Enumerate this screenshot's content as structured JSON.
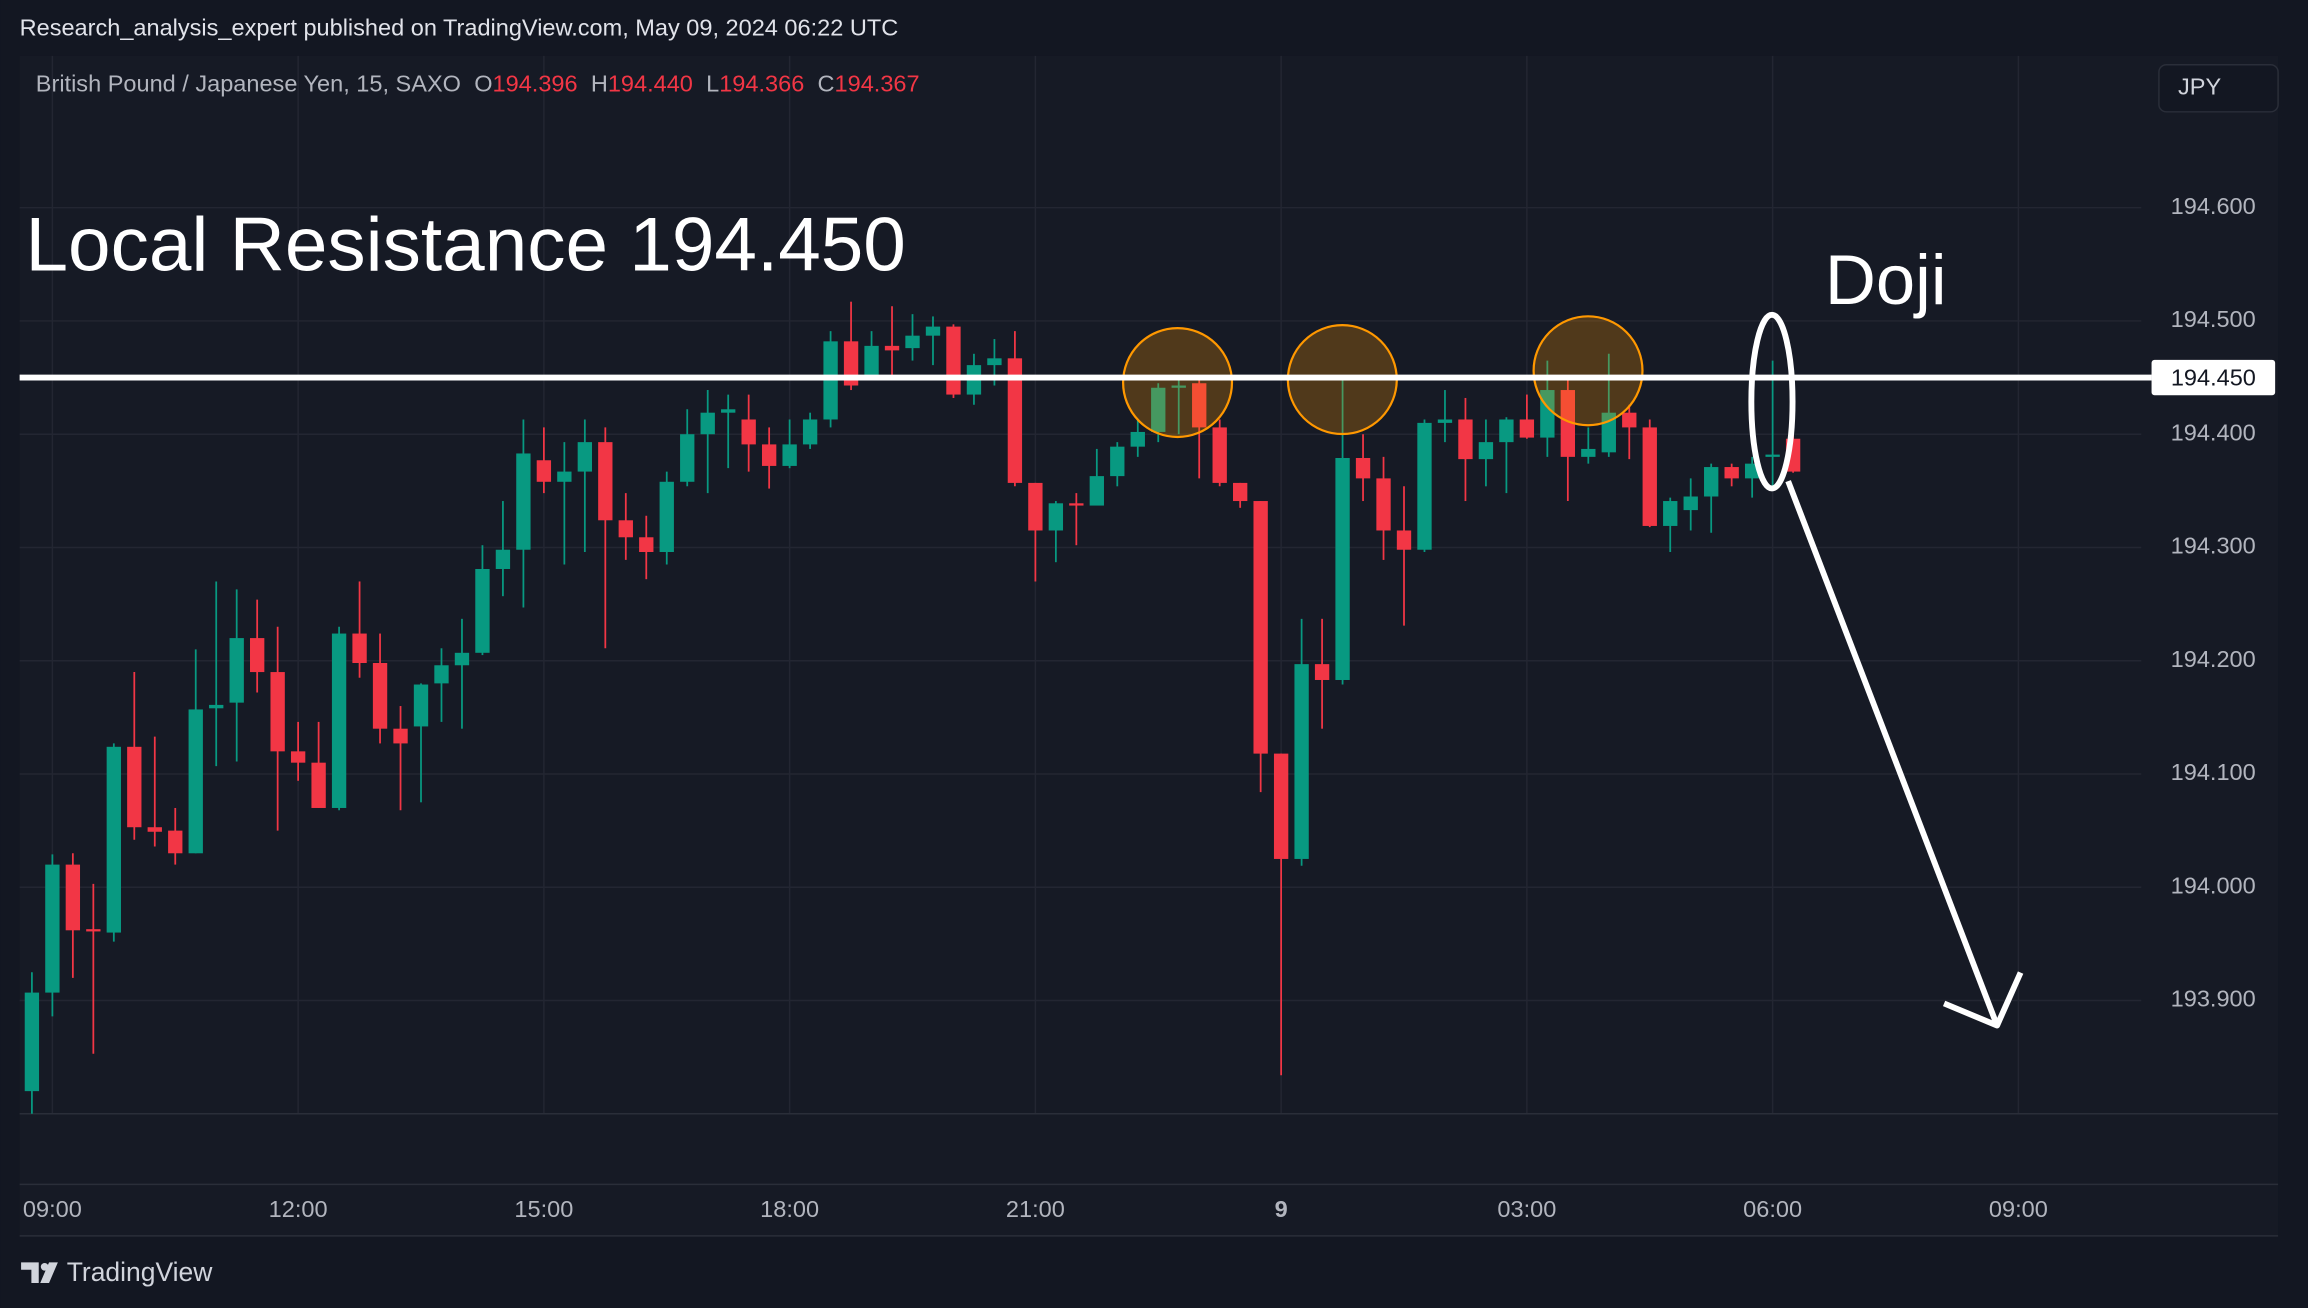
{
  "header": {
    "published": "Research_analysis_expert published on TradingView.com, May 09, 2024 06:22 UTC"
  },
  "chart_data": {
    "type": "candlestick",
    "symbol": "British Pound / Japanese Yen, 15, SAXO",
    "ohlc_letters": [
      "O",
      "H",
      "L",
      "C"
    ],
    "ohlc_values": [
      "194.396",
      "194.440",
      "194.366",
      "194.367"
    ],
    "currency": "JPY",
    "annotations": {
      "resistance_text": "Local Resistance 194.450",
      "doji_text": "Doji"
    },
    "resistance": {
      "value": 194.45,
      "label": "194.450"
    },
    "brand": "TradingView",
    "up_color": "#089981",
    "down_color": "#f23645",
    "xlim": [
      8.6,
      34.5
    ],
    "xticks": [
      {
        "value": 9,
        "label": "09:00"
      },
      {
        "value": 12,
        "label": "12:00"
      },
      {
        "value": 15,
        "label": "15:00"
      },
      {
        "value": 18,
        "label": "18:00"
      },
      {
        "value": 21,
        "label": "21:00"
      },
      {
        "value": 24,
        "label": "9"
      },
      {
        "value": 27,
        "label": "03:00"
      },
      {
        "value": 30,
        "label": "06:00"
      },
      {
        "value": 33,
        "label": "09:00"
      }
    ],
    "ylim": [
      193.8,
      194.734
    ],
    "yticks": [
      {
        "value": 193.9,
        "label": "193.900"
      },
      {
        "value": 194,
        "label": "194.000"
      },
      {
        "value": 194.1,
        "label": "194.100"
      },
      {
        "value": 194.2,
        "label": "194.200"
      },
      {
        "value": 194.3,
        "label": "194.300"
      },
      {
        "value": 194.4,
        "label": "194.400"
      },
      {
        "value": 194.5,
        "label": "194.500"
      },
      {
        "value": 194.6,
        "label": "194.600"
      }
    ],
    "grid": true,
    "x": [
      8.75,
      9,
      9.25,
      9.5,
      9.75,
      10,
      10.25,
      10.5,
      10.75,
      11,
      11.25,
      11.5,
      11.75,
      12,
      12.25,
      12.5,
      12.75,
      13,
      13.25,
      13.5,
      13.75,
      14,
      14.25,
      14.5,
      14.75,
      15,
      15.25,
      15.5,
      15.75,
      16,
      16.25,
      16.5,
      16.75,
      17,
      17.25,
      17.5,
      17.75,
      18,
      18.25,
      18.5,
      18.75,
      19,
      19.25,
      19.5,
      19.75,
      20,
      20.25,
      20.5,
      20.75,
      21,
      21.25,
      21.5,
      21.75,
      22,
      22.25,
      22.5,
      22.75,
      23,
      23.25,
      23.5,
      23.75,
      24,
      24.25,
      24.5,
      24.75,
      25,
      25.25,
      25.5,
      25.75,
      26,
      26.25,
      26.5,
      26.75,
      27,
      27.25,
      27.5,
      27.75,
      28,
      28.25,
      28.5,
      28.75,
      29,
      29.25,
      29.5,
      29.75,
      30,
      30.25
    ],
    "open": [
      193.82,
      193.907,
      194.02,
      193.963,
      193.96,
      194.124,
      194.053,
      194.05,
      194.03,
      194.158,
      194.163,
      194.22,
      194.19,
      194.12,
      194.11,
      194.07,
      194.224,
      194.198,
      194.14,
      194.142,
      194.18,
      194.196,
      194.207,
      194.281,
      194.298,
      194.377,
      194.358,
      194.367,
      194.393,
      194.324,
      194.309,
      194.296,
      194.358,
      194.4,
      194.419,
      194.413,
      194.391,
      194.372,
      194.391,
      194.413,
      194.482,
      194.452,
      194.478,
      194.476,
      194.487,
      194.495,
      194.435,
      194.461,
      194.467,
      194.357,
      194.315,
      194.339,
      194.337,
      194.363,
      194.389,
      194.402,
      194.441,
      194.445,
      194.406,
      194.357,
      194.341,
      194.118,
      194.025,
      194.197,
      194.183,
      194.379,
      194.361,
      194.315,
      194.298,
      194.41,
      194.413,
      194.378,
      194.393,
      194.413,
      194.397,
      194.439,
      194.38,
      194.384,
      194.419,
      194.406,
      194.319,
      194.333,
      194.345,
      194.371,
      194.361,
      194.38,
      194.396
    ],
    "high": [
      193.925,
      194.029,
      194.03,
      194.003,
      194.127,
      194.19,
      194.133,
      194.07,
      194.21,
      194.27,
      194.263,
      194.254,
      194.23,
      194.146,
      194.146,
      194.23,
      194.27,
      194.224,
      194.16,
      194.18,
      194.211,
      194.237,
      194.302,
      194.341,
      194.413,
      194.406,
      194.393,
      194.413,
      194.406,
      194.348,
      194.328,
      194.367,
      194.422,
      194.439,
      194.435,
      194.435,
      194.406,
      194.413,
      194.419,
      194.491,
      194.517,
      194.491,
      194.513,
      194.506,
      194.504,
      194.497,
      194.471,
      194.484,
      194.491,
      194.357,
      194.341,
      194.348,
      194.387,
      194.393,
      194.413,
      194.445,
      194.452,
      194.452,
      194.413,
      194.357,
      194.341,
      194.118,
      194.237,
      194.237,
      194.448,
      194.4,
      194.38,
      194.354,
      194.413,
      194.439,
      194.432,
      194.413,
      194.415,
      194.435,
      194.465,
      194.448,
      194.406,
      194.471,
      194.426,
      194.413,
      194.344,
      194.361,
      194.374,
      194.374,
      194.38,
      194.465,
      194.44
    ],
    "low": [
      193.8,
      193.886,
      193.92,
      193.853,
      193.952,
      194.042,
      194.036,
      194.02,
      194.03,
      194.107,
      194.111,
      194.172,
      194.05,
      194.094,
      194.07,
      194.068,
      194.185,
      194.127,
      194.068,
      194.075,
      194.146,
      194.14,
      194.205,
      194.257,
      194.247,
      194.348,
      194.285,
      194.296,
      194.211,
      194.289,
      194.272,
      194.285,
      194.354,
      194.348,
      194.37,
      194.367,
      194.352,
      194.37,
      194.387,
      194.406,
      194.439,
      194.448,
      194.452,
      194.465,
      194.461,
      194.432,
      194.426,
      194.443,
      194.354,
      194.27,
      194.287,
      194.302,
      194.339,
      194.354,
      194.38,
      194.393,
      194.4,
      194.361,
      194.354,
      194.335,
      194.084,
      193.834,
      194.019,
      194.14,
      194.179,
      194.341,
      194.289,
      194.231,
      194.296,
      194.393,
      194.341,
      194.354,
      194.348,
      194.396,
      194.38,
      194.341,
      194.374,
      194.38,
      194.378,
      194.318,
      194.296,
      194.315,
      194.313,
      194.354,
      194.344,
      194.354,
      194.366
    ],
    "close": [
      193.907,
      194.02,
      193.962,
      193.961,
      194.124,
      194.053,
      194.049,
      194.03,
      194.157,
      194.161,
      194.22,
      194.19,
      194.12,
      194.11,
      194.07,
      194.224,
      194.198,
      194.14,
      194.127,
      194.179,
      194.196,
      194.207,
      194.281,
      194.298,
      194.383,
      194.358,
      194.367,
      194.393,
      194.324,
      194.309,
      194.296,
      194.358,
      194.4,
      194.419,
      194.422,
      194.391,
      194.372,
      194.391,
      194.413,
      194.482,
      194.443,
      194.478,
      194.474,
      194.487,
      194.495,
      194.435,
      194.461,
      194.467,
      194.357,
      194.315,
      194.339,
      194.337,
      194.363,
      194.389,
      194.402,
      194.441,
      194.443,
      194.406,
      194.357,
      194.341,
      194.118,
      194.025,
      194.197,
      194.183,
      194.379,
      194.361,
      194.315,
      194.298,
      194.41,
      194.413,
      194.378,
      194.393,
      194.413,
      194.397,
      194.439,
      194.38,
      194.387,
      194.419,
      194.406,
      194.319,
      194.341,
      194.345,
      194.371,
      194.361,
      194.374,
      194.382,
      194.367
    ]
  }
}
